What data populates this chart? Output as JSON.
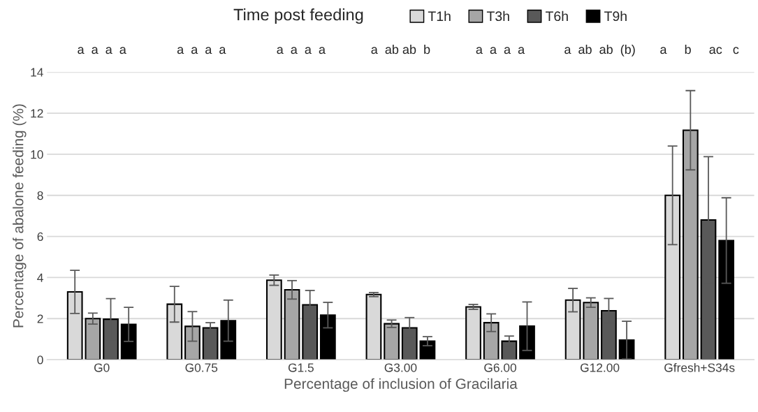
{
  "chart_data": {
    "type": "bar",
    "xlabel": "Percentage of inclusion of Gracilaria",
    "ylabel": "Percentage of abalone feeding (%)",
    "legend_title": "Time post feeding",
    "legend": "top",
    "categories": [
      "G0",
      "G0.75",
      "G1.5",
      "G3.00",
      "G6.00",
      "G12.00",
      "Gfresh+S34s"
    ],
    "series": [
      {
        "name": "T1h",
        "color": "#d9d9d9",
        "values": [
          3.3,
          2.7,
          3.87,
          3.17,
          2.57,
          2.9,
          8.0
        ],
        "errors": [
          1.05,
          0.87,
          0.25,
          0.1,
          0.12,
          0.57,
          2.4
        ]
      },
      {
        "name": "T3h",
        "color": "#a6a6a6",
        "values": [
          2.0,
          1.62,
          3.4,
          1.75,
          1.8,
          2.78,
          11.17
        ],
        "errors": [
          0.27,
          0.72,
          0.45,
          0.18,
          0.43,
          0.23,
          1.93
        ]
      },
      {
        "name": "T6h",
        "color": "#595959",
        "values": [
          1.97,
          1.55,
          2.67,
          1.55,
          0.9,
          2.38,
          6.8
        ],
        "errors": [
          1.0,
          0.25,
          0.7,
          0.5,
          0.25,
          0.6,
          3.08
        ]
      },
      {
        "name": "T9h",
        "color": "#000000",
        "values": [
          1.72,
          1.9,
          2.17,
          0.9,
          1.63,
          0.95,
          5.8
        ],
        "errors": [
          0.83,
          1.0,
          0.62,
          0.22,
          1.18,
          0.92,
          2.08
        ]
      }
    ],
    "ylim": [
      0,
      14
    ],
    "yticks": [
      0,
      2,
      4,
      6,
      8,
      10,
      12,
      14
    ],
    "grid": "y",
    "annotations": [
      "a  a  a  a",
      "a  a  a  a",
      "a  a  a  a",
      "a  ab ab  b",
      "a  a  a  a",
      "a  ab  ab  (b)",
      "a     b     ac   c"
    ]
  }
}
